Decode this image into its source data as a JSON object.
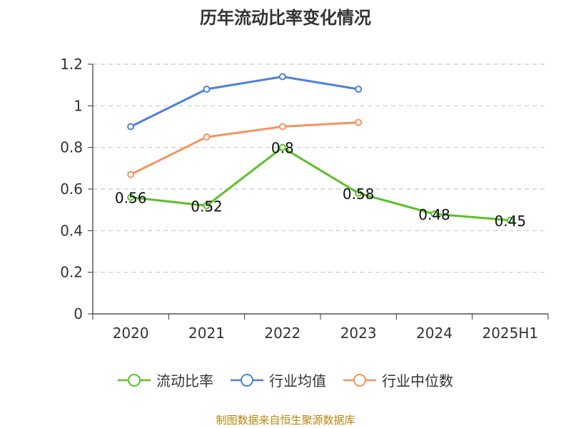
{
  "chart_data": {
    "type": "line",
    "title": "历年流动比率变化情况",
    "categories": [
      "2020",
      "2021",
      "2022",
      "2023",
      "2024",
      "2025H1"
    ],
    "ylim": [
      0,
      1.2
    ],
    "yticks": [
      "0",
      "0.2",
      "0.4",
      "0.6",
      "0.8",
      "1",
      "1.2"
    ],
    "grid": true,
    "legend_position": "bottom",
    "series": [
      {
        "name": "流动比率",
        "color": "#5cbf2a",
        "values": [
          0.56,
          0.52,
          0.8,
          0.58,
          0.48,
          0.45
        ],
        "labels": [
          "0.56",
          "0.52",
          "0.8",
          "0.58",
          "0.48",
          "0.45"
        ]
      },
      {
        "name": "行业均值",
        "color": "#4f7fd9",
        "values": [
          0.9,
          1.08,
          1.14,
          1.08,
          null,
          null
        ]
      },
      {
        "name": "行业中位数",
        "color": "#f5925e",
        "values": [
          0.67,
          0.85,
          0.9,
          0.92,
          null,
          null
        ]
      }
    ]
  },
  "footer": {
    "source": "制图数据来自恒生聚源数据库"
  }
}
